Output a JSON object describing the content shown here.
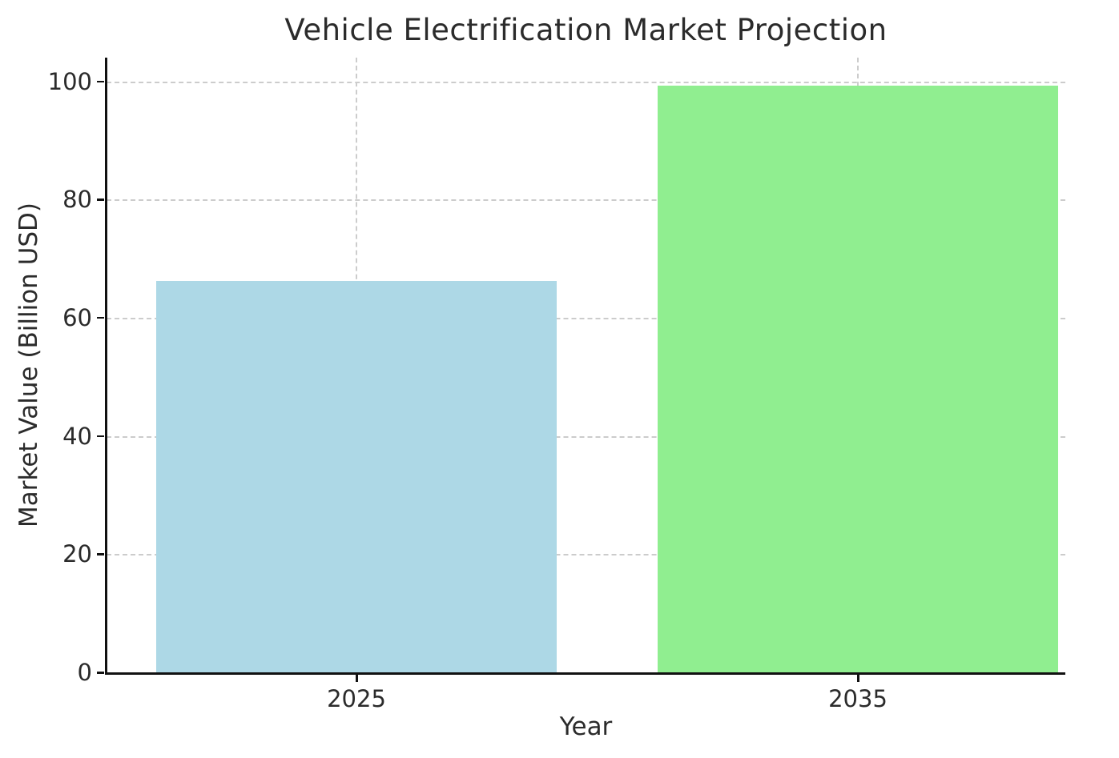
{
  "chart_data": {
    "type": "bar",
    "title": "Vehicle Electrification Market Projection",
    "xlabel": "Year",
    "ylabel": "Market Value (Billion USD)",
    "categories": [
      "2025",
      "2035"
    ],
    "values": [
      66.2,
      99.3
    ],
    "bar_colors": [
      "#ADD8E6",
      "#90EE90"
    ],
    "ylim": [
      0,
      104
    ],
    "yticks": [
      0,
      20,
      40,
      60,
      80,
      100
    ],
    "grid": "dashed",
    "grid_color": "#cccccc",
    "legend": "none"
  }
}
